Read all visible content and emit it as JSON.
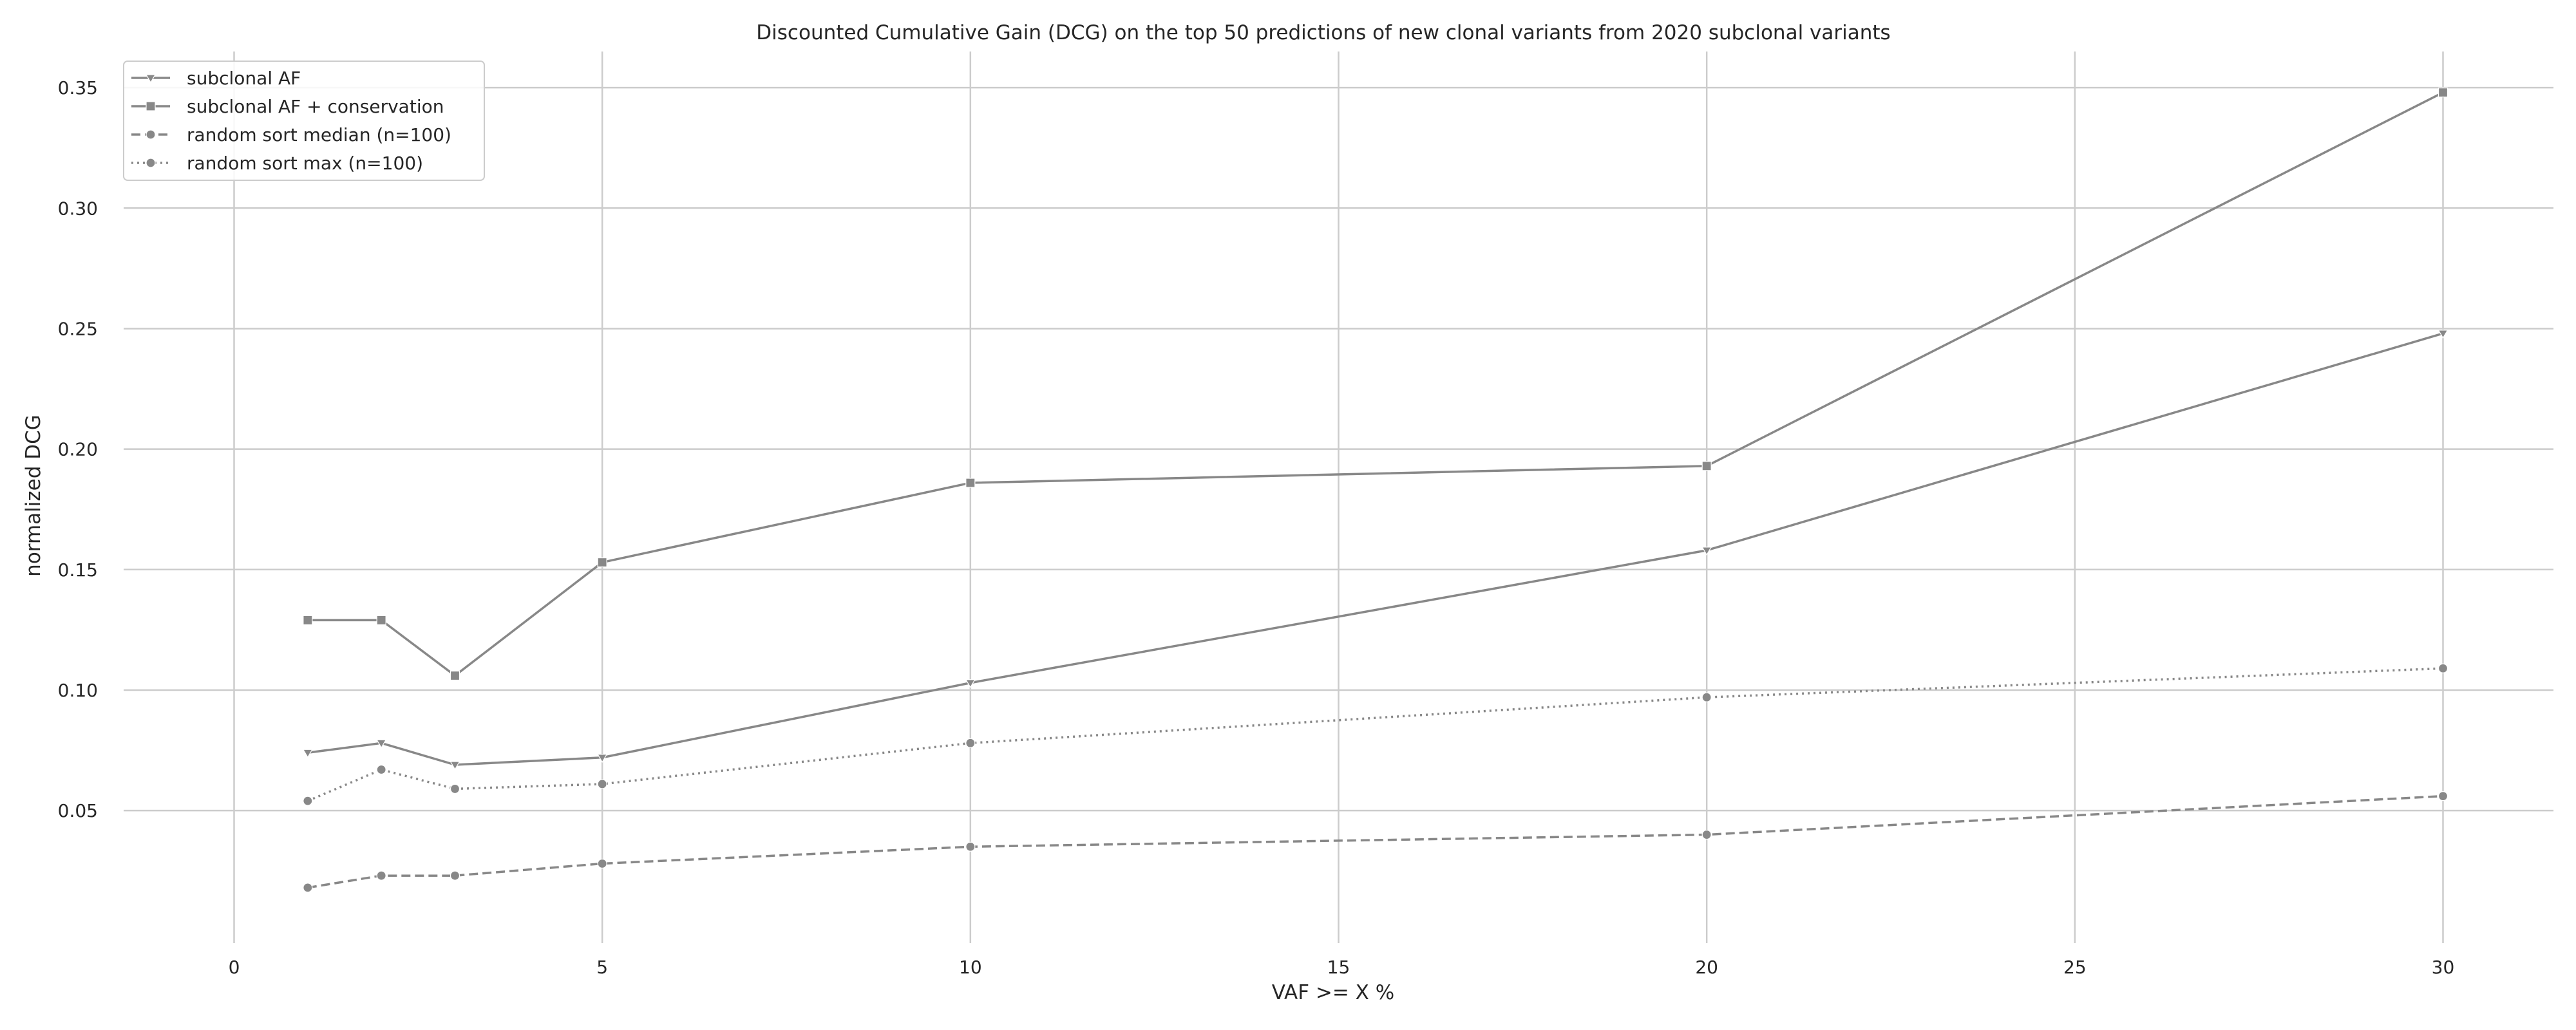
{
  "chart_data": {
    "type": "line",
    "title": "Discounted Cumulative Gain (DCG) on the top 50 predictions of new clonal variants from 2020 subclonal variants",
    "xlabel": "VAF >= X %",
    "ylabel": "normalized DCG",
    "xlim": [
      -1.5,
      31.5
    ],
    "ylim": [
      -0.005,
      0.365
    ],
    "xticks": [
      0,
      5,
      10,
      15,
      20,
      25,
      30
    ],
    "xtick_labels": [
      "0",
      "5",
      "10",
      "15",
      "20",
      "25",
      "30"
    ],
    "yticks": [
      0.05,
      0.1,
      0.15,
      0.2,
      0.25,
      0.3,
      0.35
    ],
    "ytick_labels": [
      "0.05",
      "0.10",
      "0.15",
      "0.20",
      "0.25",
      "0.30",
      "0.35"
    ],
    "grid": true,
    "legend_position": "top-left",
    "x": [
      1,
      2,
      3,
      5,
      10,
      20,
      30
    ],
    "series": [
      {
        "name": "subclonal AF",
        "values": [
          0.074,
          0.078,
          0.069,
          0.072,
          0.103,
          0.158,
          0.248
        ],
        "color": "#888888",
        "line_style": "solid",
        "marker": "triangle-down"
      },
      {
        "name": "subclonal AF + conservation",
        "values": [
          0.129,
          0.129,
          0.106,
          0.153,
          0.186,
          0.193,
          0.348
        ],
        "color": "#888888",
        "line_style": "solid",
        "marker": "square"
      },
      {
        "name": "random sort median (n=100)",
        "values": [
          0.018,
          0.023,
          0.023,
          0.028,
          0.035,
          0.04,
          0.056
        ],
        "color": "#888888",
        "line_style": "dashed",
        "marker": "circle"
      },
      {
        "name": "random sort max (n=100)",
        "values": [
          0.054,
          0.067,
          0.059,
          0.061,
          0.078,
          0.097,
          0.109
        ],
        "color": "#888888",
        "line_style": "dotted",
        "marker": "circle"
      }
    ]
  }
}
